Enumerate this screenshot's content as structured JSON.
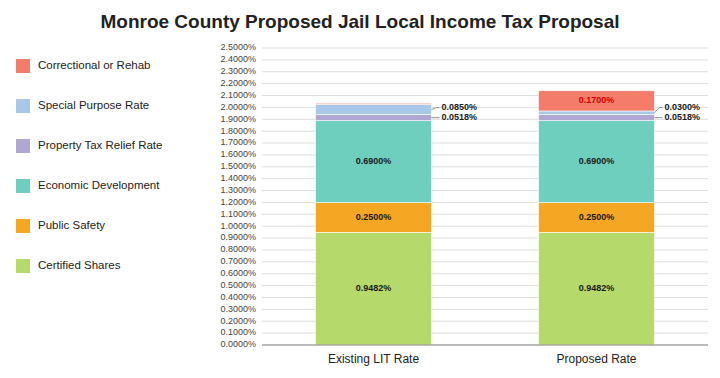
{
  "chart_data": {
    "type": "bar",
    "title": "Monroe County Proposed Jail Local Income Tax Proposal",
    "categories": [
      "Existing LIT Rate",
      "Proposed Rate"
    ],
    "stacked": true,
    "data_labels": true,
    "grid": true,
    "legend": "left",
    "ylim": [
      0,
      2.5
    ],
    "yticks": [
      {
        "value": 0,
        "label": "0.0000%"
      },
      {
        "value": 0.1,
        "label": "0.1000%"
      },
      {
        "value": 0.2,
        "label": "0.2000%"
      },
      {
        "value": 0.3,
        "label": "0.3000%"
      },
      {
        "value": 0.4,
        "label": "0.4000%"
      },
      {
        "value": 0.5,
        "label": "0.5000%"
      },
      {
        "value": 0.6,
        "label": "0.6000%"
      },
      {
        "value": 0.7,
        "label": "0.7000%"
      },
      {
        "value": 0.8,
        "label": "0.8000%"
      },
      {
        "value": 0.9,
        "label": "0.9000%"
      },
      {
        "value": 1.0,
        "label": "1.0000%"
      },
      {
        "value": 1.1,
        "label": "1.1000%"
      },
      {
        "value": 1.2,
        "label": "1.2000%"
      },
      {
        "value": 1.3,
        "label": "1.3000%"
      },
      {
        "value": 1.4,
        "label": "1.4000%"
      },
      {
        "value": 1.5,
        "label": "1.5000%"
      },
      {
        "value": 1.6,
        "label": "1.6000%"
      },
      {
        "value": 1.7,
        "label": "1.7000%"
      },
      {
        "value": 1.8,
        "label": "1.8000%"
      },
      {
        "value": 1.9,
        "label": "1.9000%"
      },
      {
        "value": 2.0,
        "label": "2.0000%"
      },
      {
        "value": 2.1,
        "label": "2.1000%"
      },
      {
        "value": 2.2,
        "label": "2.2000%"
      },
      {
        "value": 2.3,
        "label": "2.3000%"
      },
      {
        "value": 2.4,
        "label": "2.4000%"
      },
      {
        "value": 2.5,
        "label": "2.5000%"
      }
    ],
    "series": [
      {
        "name": "Certified Shares",
        "color": "#b5d96b",
        "values": [
          0.9482,
          0.9482
        ],
        "value_labels": [
          "0.9482%",
          "0.9482%"
        ]
      },
      {
        "name": "Public Safety",
        "color": "#f5a623",
        "values": [
          0.25,
          0.25
        ],
        "value_labels": [
          "0.2500%",
          "0.2500%"
        ]
      },
      {
        "name": "Economic Development",
        "color": "#6ecfbe",
        "values": [
          0.69,
          0.69
        ],
        "value_labels": [
          "0.6900%",
          "0.6900%"
        ]
      },
      {
        "name": "Property Tax Relief Rate",
        "color": "#b0a8d0",
        "values": [
          0.0518,
          0.0518
        ],
        "value_labels": [
          "0.0518%",
          "0.0518%"
        ]
      },
      {
        "name": "Special Purpose Rate",
        "color": "#a8c8e8",
        "values": [
          0.085,
          0.03
        ],
        "value_labels": [
          "0.0850%",
          "0.0300%"
        ]
      },
      {
        "name": "Correctional or Rehab",
        "color": "#f47c6a",
        "values": [
          0.01,
          0.17
        ],
        "value_labels": [
          null,
          "0.1700%"
        ]
      }
    ]
  }
}
